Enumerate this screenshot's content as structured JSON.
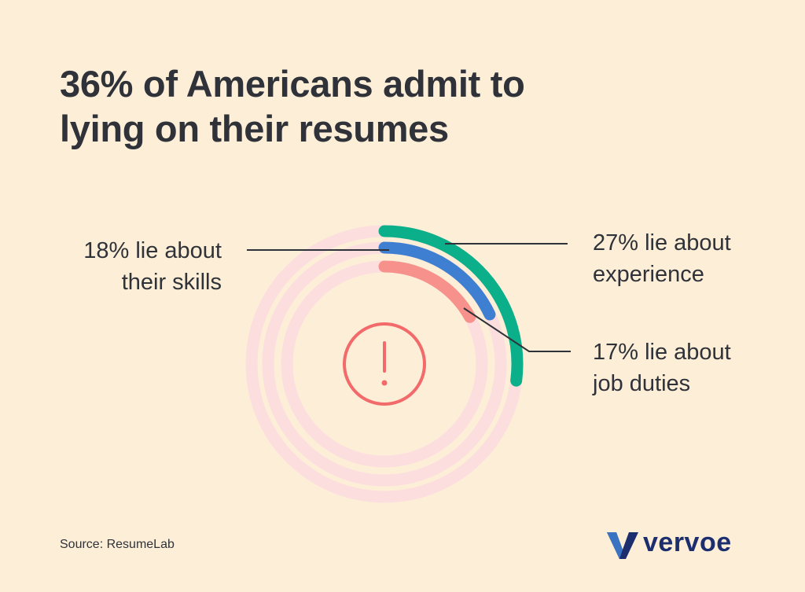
{
  "title_lines": [
    "36% of Americans admit to",
    "lying on their resumes"
  ],
  "source": "Source: ResumeLab",
  "brand": "vervoe",
  "chart_data": {
    "type": "radial-bar",
    "title": "36% of Americans admit to lying on their resumes",
    "unit": "%",
    "max": 100,
    "series": [
      {
        "label_lines": [
          "27% lie about",
          "experience"
        ],
        "value": 27,
        "color": "#0bb08a",
        "track_color": "#fcdede"
      },
      {
        "label_lines": [
          "18% lie about",
          "their skills"
        ],
        "value": 18,
        "color": "#3f7fd1",
        "track_color": "#fcdede"
      },
      {
        "label_lines": [
          "17% lie about",
          "job duties"
        ],
        "value": 17,
        "color": "#f6918b",
        "track_color": "#fcdede"
      }
    ],
    "center_icon": "exclamation-circle-icon",
    "center_icon_color": "#f26a6a"
  }
}
